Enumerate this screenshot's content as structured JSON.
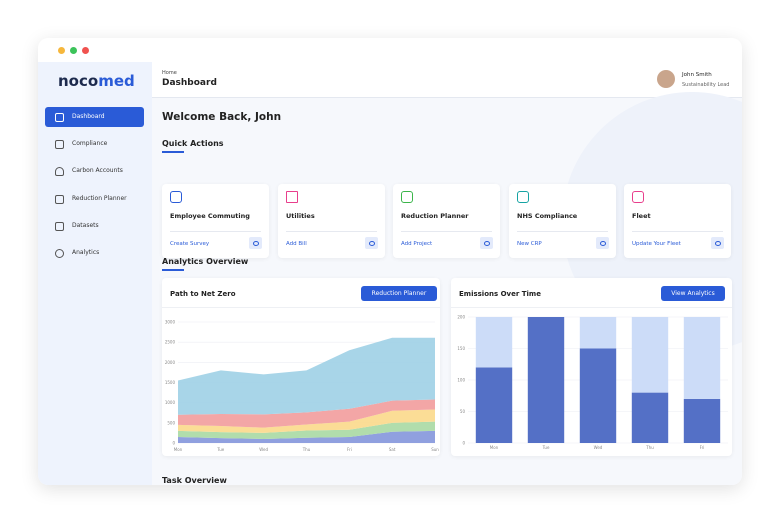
{
  "sidebar": {
    "logo": [
      "noco",
      "med"
    ],
    "items": [
      "Dashboard",
      "Compliance",
      "Carbon Accounts",
      "Reduction Planner",
      "Datasets",
      "Analytics"
    ]
  },
  "header": {
    "breadcrumb": "Home",
    "title": "Dashboard",
    "user": {
      "name": "John Smith",
      "role": "Sustainability Lead"
    }
  },
  "welcome": "Welcome Back, John",
  "quick_actions": {
    "title": "Quick Actions",
    "cards": [
      {
        "title": "Employee Commuting",
        "link": "Create Survey"
      },
      {
        "title": "Utilities",
        "link": "Add Bill"
      },
      {
        "title": "Reduction Planner",
        "link": "Add Project"
      },
      {
        "title": "NHS Compliance",
        "link": "New CRP"
      },
      {
        "title": "Fleet",
        "link": "Update Your Fleet"
      }
    ]
  },
  "analytics": {
    "title": "Analytics Overview"
  },
  "chart_data": [
    {
      "type": "area",
      "title": "Path to Net Zero",
      "button": "Reduction Planner",
      "categories": [
        "Mon",
        "Tue",
        "Wed",
        "Thu",
        "Fri",
        "Sat",
        "Sun"
      ],
      "series": [
        {
          "color": "#8496dc",
          "values": [
            150,
            120,
            100,
            130,
            150,
            280,
            300
          ]
        },
        {
          "color": "#a9d9a3",
          "values": [
            150,
            150,
            150,
            180,
            180,
            220,
            230
          ]
        },
        {
          "color": "#fbd98b",
          "values": [
            150,
            150,
            130,
            150,
            200,
            300,
            300
          ]
        },
        {
          "color": "#f29c9c",
          "values": [
            250,
            300,
            330,
            300,
            320,
            250,
            250
          ]
        },
        {
          "color": "#9fd0e6",
          "values": [
            850,
            1080,
            990,
            1040,
            1450,
            1560,
            1530
          ]
        }
      ],
      "ylim": [
        0,
        3000
      ],
      "yticks": [
        0,
        500,
        1000,
        1500,
        2000,
        2500,
        3000
      ],
      "grid": true
    },
    {
      "type": "bar",
      "title": "Emissions Over Time",
      "button": "View Analytics",
      "categories": [
        "Mon",
        "Tue",
        "Wed",
        "Thu",
        "Fri"
      ],
      "series": [
        {
          "color": "#5470c6",
          "values": [
            120,
            200,
            150,
            80,
            70
          ]
        },
        {
          "color": "#ccdcf8",
          "values": [
            80,
            0,
            50,
            120,
            130
          ]
        }
      ],
      "ylim": [
        0,
        200
      ],
      "yticks": [
        0,
        50,
        100,
        150,
        200
      ],
      "grid": true
    }
  ],
  "task_overview": "Task Overview"
}
